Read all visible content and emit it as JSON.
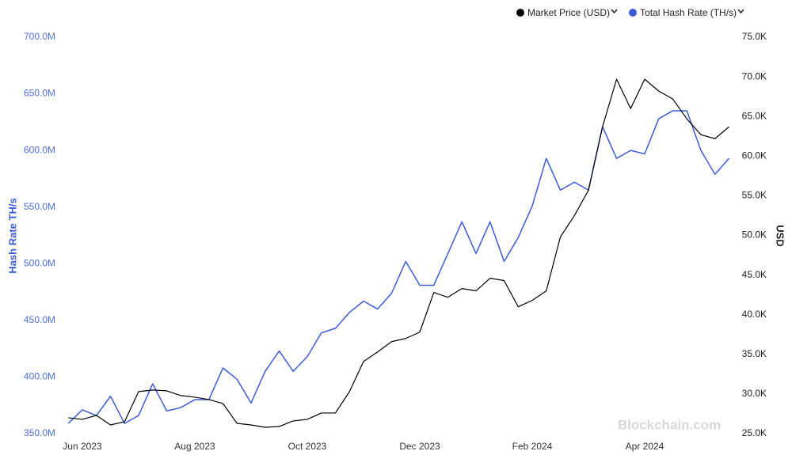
{
  "chart_data": {
    "type": "line",
    "legend_position": "top-right",
    "watermark": "Blockchain.com",
    "ylabel": "Hash Rate TH/s",
    "y2label": "USD",
    "categories": [
      null,
      "Jun 2023",
      null,
      null,
      null,
      null,
      null,
      null,
      null,
      "Aug 2023",
      null,
      null,
      null,
      null,
      null,
      null,
      null,
      "Oct 2023",
      null,
      null,
      null,
      null,
      null,
      null,
      null,
      "Dec 2023",
      null,
      null,
      null,
      null,
      null,
      null,
      null,
      "Feb 2024",
      null,
      null,
      null,
      null,
      null,
      null,
      null,
      "Apr 2024",
      null,
      null,
      null,
      null,
      null,
      null
    ],
    "series": [
      {
        "name": "Market Price (USD)",
        "color": "#000000",
        "axis": "y2",
        "values": [
          27.0,
          26.8,
          27.3,
          26.1,
          26.5,
          30.3,
          30.5,
          30.4,
          29.8,
          29.6,
          29.3,
          28.8,
          26.3,
          26.1,
          25.8,
          25.9,
          26.6,
          26.8,
          27.6,
          27.6,
          30.3,
          34.1,
          35.3,
          36.6,
          37.0,
          37.8,
          42.8,
          42.2,
          43.3,
          43.0,
          44.6,
          44.3,
          41.0,
          41.8,
          43.0,
          49.8,
          52.5,
          55.7,
          63.7,
          69.7,
          66.0,
          69.7,
          68.2,
          67.2,
          64.7,
          62.7,
          62.2,
          63.7
        ]
      },
      {
        "name": "Total Hash Rate (TH/s)",
        "color": "#3b5bdb",
        "values": [
          359,
          371,
          366,
          383,
          359,
          366,
          394,
          370,
          373,
          380,
          380,
          408,
          398,
          377,
          405,
          423,
          405,
          418,
          439,
          443,
          457,
          467,
          460,
          474,
          502,
          481,
          481,
          509,
          537,
          509,
          537,
          502,
          523,
          551,
          593,
          565,
          572,
          565,
          621,
          593,
          600,
          597,
          628,
          635,
          635,
          600,
          579,
          593
        ]
      }
    ],
    "ylim": [
      350,
      700
    ],
    "yticks": [
      {
        "value": 350,
        "label": "350.0M"
      },
      {
        "value": 400,
        "label": "400.0M"
      },
      {
        "value": 450,
        "label": "450.0M"
      },
      {
        "value": 500,
        "label": "500.0M"
      },
      {
        "value": 550,
        "label": "550.0M"
      },
      {
        "value": 600,
        "label": "600.0M"
      },
      {
        "value": 650,
        "label": "650.0M"
      },
      {
        "value": 700,
        "label": "700.0M"
      }
    ],
    "y2lim": [
      25,
      75
    ],
    "y2ticks": [
      {
        "value": 25,
        "label": "25.0K"
      },
      {
        "value": 30,
        "label": "30.0K"
      },
      {
        "value": 35,
        "label": "35.0K"
      },
      {
        "value": 40,
        "label": "40.0K"
      },
      {
        "value": 45,
        "label": "45.0K"
      },
      {
        "value": 50,
        "label": "50.0K"
      },
      {
        "value": 55,
        "label": "55.0K"
      },
      {
        "value": 60,
        "label": "60.0K"
      },
      {
        "value": 65,
        "label": "65.0K"
      },
      {
        "value": 70,
        "label": "70.0K"
      },
      {
        "value": 75,
        "label": "75.0K"
      }
    ]
  }
}
